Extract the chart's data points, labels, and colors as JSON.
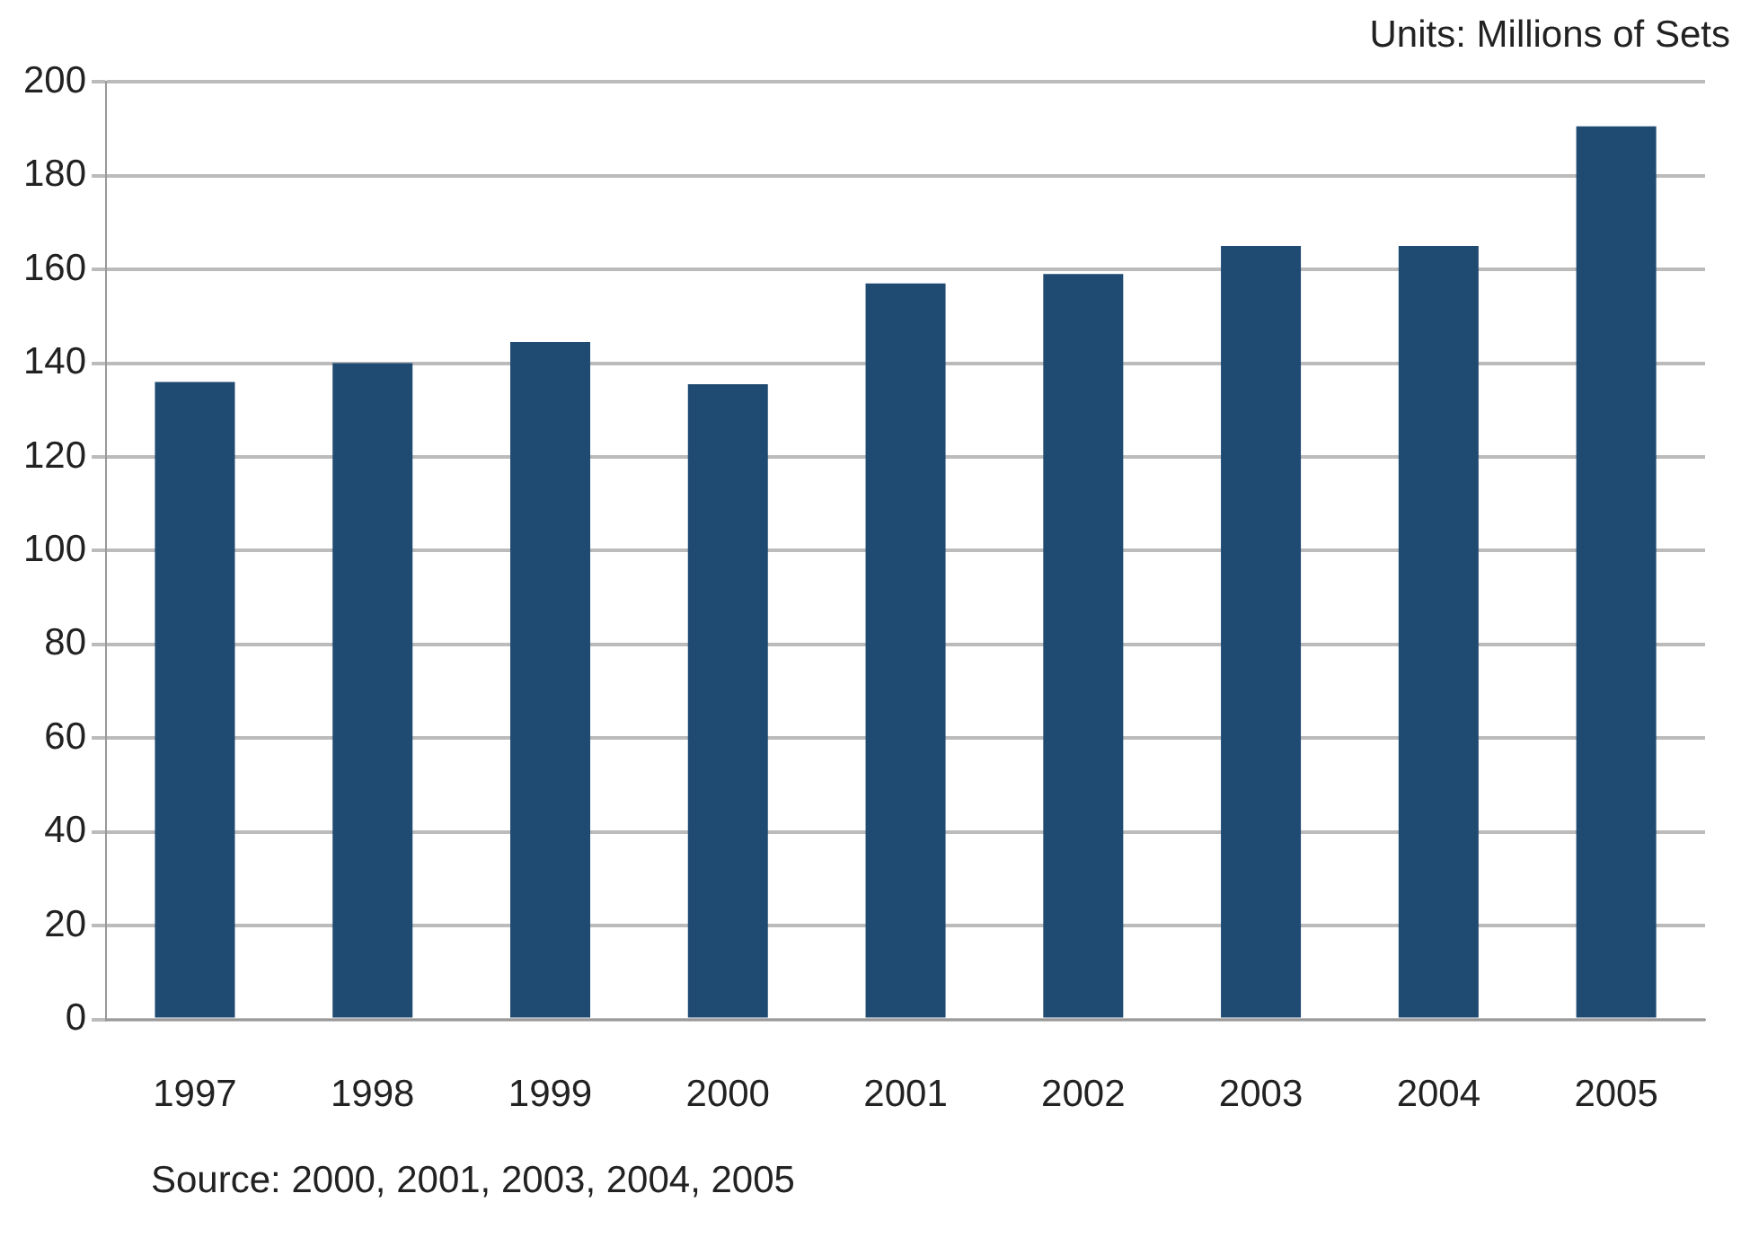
{
  "chart_data": {
    "type": "bar",
    "ylabel": "Units: Millions of Sets",
    "categories": [
      "1997",
      "1998",
      "1999",
      "2000",
      "2001",
      "2002",
      "2003",
      "2004",
      "2005"
    ],
    "values": [
      136,
      140,
      144.5,
      135.5,
      157,
      159,
      165,
      165,
      190.5
    ],
    "color": "#1f4a72",
    "ylim": [
      0,
      200
    ],
    "yticks": [
      0,
      20,
      40,
      60,
      80,
      100,
      120,
      140,
      160,
      180,
      200
    ],
    "grid": "y",
    "annotations": [
      "Source: 2000, 2001, 2003, 2004, 2005"
    ]
  }
}
